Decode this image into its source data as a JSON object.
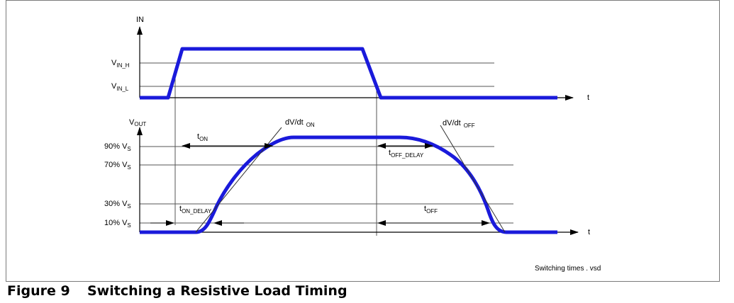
{
  "diagram": {
    "axes": {
      "in_axis": "IN",
      "vout_axis_main": "V",
      "vout_axis_sub": "OUT",
      "time_axis_top": "t",
      "time_axis_bottom": "t"
    },
    "levels": {
      "vin_h_main": "V",
      "vin_h_sub": "IN_H",
      "vin_l_main": "V",
      "vin_l_sub": "IN_L",
      "pct90_main": "90% V",
      "pct90_sub": "S",
      "pct70_main": "70% V",
      "pct70_sub": "S",
      "pct30_main": "30% V",
      "pct30_sub": "S",
      "pct10_main": "10% V",
      "pct10_sub": "S"
    },
    "annotations": {
      "dvdt_on_main": "dV/dt",
      "dvdt_on_sub": "ON",
      "dvdt_off_main": "dV/dt",
      "dvdt_off_sub": "OFF",
      "t_on_main": "t",
      "t_on_sub": "ON",
      "t_on_delay_main": "t",
      "t_on_delay_sub": "ON_DELAY",
      "t_off_delay_main": "t",
      "t_off_delay_sub": "OFF_DELAY",
      "t_off_main": "t",
      "t_off_sub": "OFF"
    },
    "file_name": "Switching times . vsd",
    "trace_color": "#1a1adb"
  },
  "caption": {
    "figure_number": "Figure 9",
    "title": "Switching a Resistive Load Timing"
  }
}
